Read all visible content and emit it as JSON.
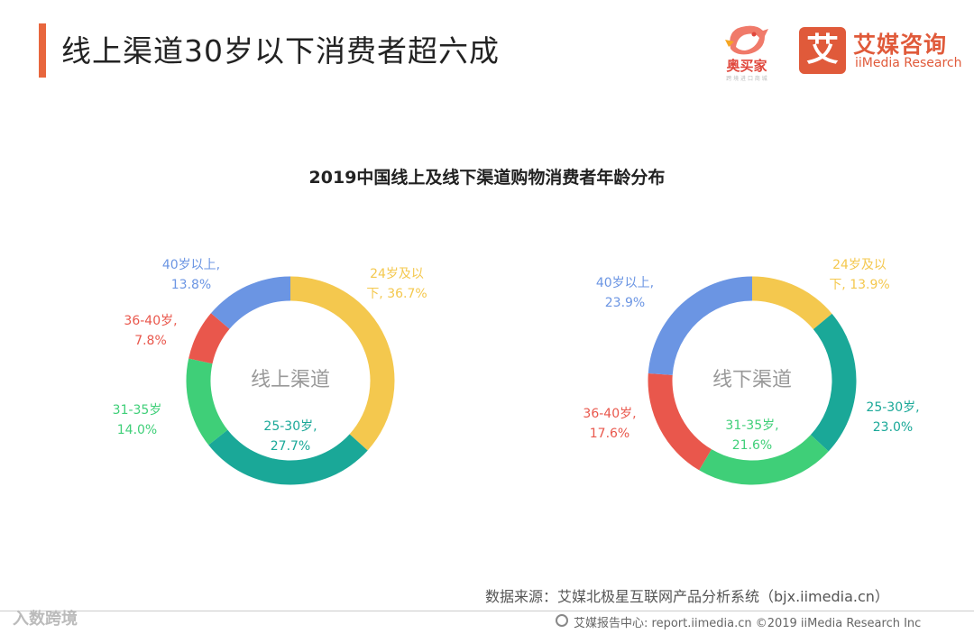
{
  "header": {
    "title": "线上渠道30岁以下消费者超六成"
  },
  "logos": {
    "partner_name": "奥买家",
    "partner_sub": "跨 境 进 口 商 城",
    "brand_mark": "艾",
    "brand_cn": "艾媒咨询",
    "brand_en": "iiMedia Research"
  },
  "colors": {
    "under24": "#f4c84e",
    "age25_30": "#1aa898",
    "age31_35": "#3fcf78",
    "age36_40": "#e9574c",
    "over40": "#6b95e3"
  },
  "chart_data": [
    {
      "type": "pie",
      "title": "2019中国线上及线下渠道购物消费者年龄分布",
      "center_label": "线上渠道",
      "categories": [
        "24岁及以下",
        "25-30岁",
        "31-35岁",
        "36-40岁",
        "40岁以上"
      ],
      "values": [
        36.7,
        27.7,
        14.0,
        7.8,
        13.8
      ],
      "labels": [
        [
          "24岁及以",
          "下, 36.7%"
        ],
        [
          "25-30岁,",
          "27.7%"
        ],
        [
          "31-35岁",
          "14.0%"
        ],
        [
          "36-40岁,",
          "7.8%"
        ],
        [
          "40岁以上,",
          "13.8%"
        ]
      ],
      "unit": "%"
    },
    {
      "type": "pie",
      "title": "2019中国线上及线下渠道购物消费者年龄分布",
      "center_label": "线下渠道",
      "categories": [
        "24岁及以下",
        "25-30岁",
        "31-35岁",
        "36-40岁",
        "40岁以上"
      ],
      "values": [
        13.9,
        23.0,
        21.6,
        17.6,
        23.9
      ],
      "labels": [
        [
          "24岁及以",
          "下, 13.9%"
        ],
        [
          "25-30岁,",
          "23.0%"
        ],
        [
          "31-35岁,",
          "21.6%"
        ],
        [
          "36-40岁,",
          "17.6%"
        ],
        [
          "40岁以上,",
          "23.9%"
        ]
      ],
      "unit": "%"
    }
  ],
  "source": "数据来源：艾媒北极星互联网产品分析系统（bjx.iimedia.cn）",
  "footer": {
    "text": "艾媒报告中心: report.iimedia.cn  ©2019  iiMedia Research  Inc",
    "watermark": "入数跨境"
  }
}
